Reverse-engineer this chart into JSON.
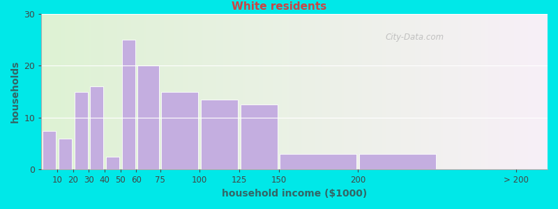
{
  "subtitle": "White residents",
  "xlabel": "household income ($1000)",
  "ylabel": "households",
  "bar_color": "#c4aee0",
  "background_outer": "#00e8e8",
  "background_inner_left": "#dff0d8",
  "background_inner_right": "#f5eef8",
  "ylim": [
    0,
    30
  ],
  "yticks": [
    0,
    10,
    20,
    30
  ],
  "title_fontsize": 13,
  "subtitle_fontsize": 11,
  "title_color": "#2a7a7a",
  "subtitle_color": "#cc4444",
  "axis_label_fontsize": 10,
  "watermark": "City-Data.com",
  "bar_lefts": [
    0,
    10,
    20,
    30,
    40,
    50,
    60,
    75,
    100,
    125,
    150,
    200,
    250
  ],
  "bar_widths": [
    10,
    10,
    10,
    10,
    10,
    10,
    15,
    25,
    25,
    25,
    50,
    50,
    50
  ],
  "bar_values": [
    7.5,
    6,
    15,
    16,
    2.5,
    25,
    20,
    15,
    13.5,
    12.5,
    3,
    3,
    0
  ],
  "xtick_positions": [
    10,
    20,
    30,
    40,
    50,
    60,
    75,
    100,
    125,
    150,
    200,
    300
  ],
  "xtick_labels": [
    "10",
    "20",
    "30",
    "40",
    "50",
    "60",
    "75",
    "100",
    "125",
    "150",
    "200",
    "> 200"
  ]
}
